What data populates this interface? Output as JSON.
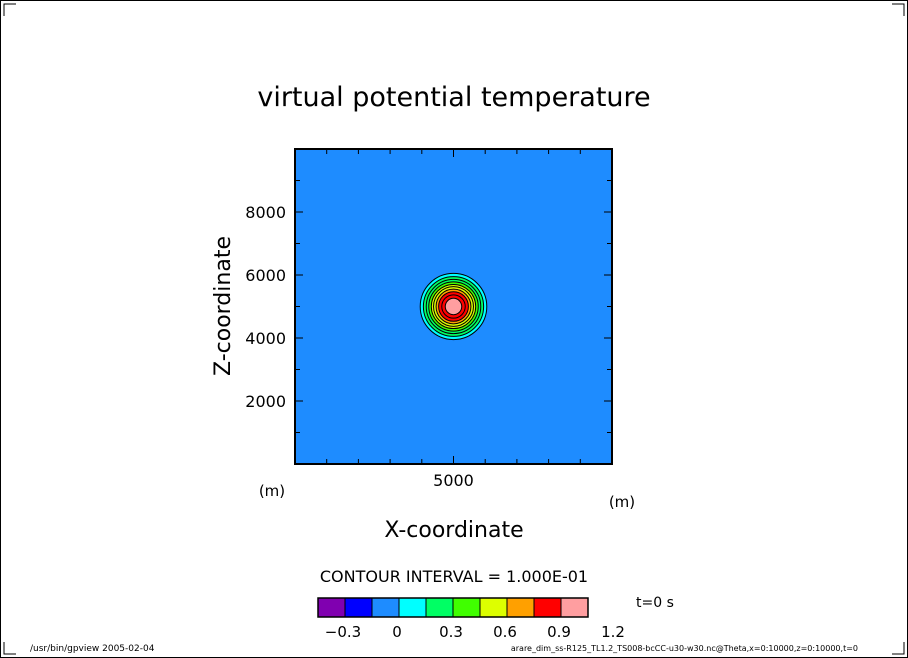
{
  "chart_data": {
    "type": "heatmap",
    "title": "virtual potential temperature",
    "xlabel": "X-coordinate",
    "ylabel": "Z-coordinate",
    "x_unit": "(m)",
    "y_unit": "(m)",
    "xlim": [
      0,
      10000
    ],
    "ylim": [
      0,
      10000
    ],
    "xticks": [
      5000
    ],
    "yticks": [
      2000,
      4000,
      6000,
      8000
    ],
    "contour_interval_label": "CONTOUR INTERVAL = 1.000E-01",
    "time_label": "t=0 s",
    "bubble": {
      "center_x": 5000,
      "center_z": 5000,
      "max_value": 1.0
    },
    "contour_levels": [
      {
        "value": 0.0,
        "radius": 1050
      },
      {
        "value": 0.1,
        "radius": 950
      },
      {
        "value": 0.2,
        "radius": 860
      },
      {
        "value": 0.3,
        "radius": 780
      },
      {
        "value": 0.4,
        "radius": 700
      },
      {
        "value": 0.5,
        "radius": 630
      },
      {
        "value": 0.6,
        "radius": 550
      },
      {
        "value": 0.7,
        "radius": 470
      },
      {
        "value": 0.8,
        "radius": 370
      },
      {
        "value": 0.9,
        "radius": 260
      }
    ],
    "colorbar": {
      "bins": [
        {
          "from": -0.45,
          "to": -0.3,
          "color": "#8000b0"
        },
        {
          "from": -0.3,
          "to": -0.15,
          "color": "#0000ff"
        },
        {
          "from": -0.15,
          "to": 0.0,
          "color": "#1e8cff"
        },
        {
          "from": 0.0,
          "to": 0.15,
          "color": "#00ffff"
        },
        {
          "from": 0.15,
          "to": 0.3,
          "color": "#00ff64"
        },
        {
          "from": 0.3,
          "to": 0.45,
          "color": "#40ff00"
        },
        {
          "from": 0.45,
          "to": 0.6,
          "color": "#ddff00"
        },
        {
          "from": 0.6,
          "to": 0.75,
          "color": "#ffa000"
        },
        {
          "from": 0.75,
          "to": 0.9,
          "color": "#ff0000"
        },
        {
          "from": 0.9,
          "to": 1.05,
          "color": "#ff9ea0"
        }
      ],
      "tick_labels": [
        "−0.3",
        "0",
        "0.3",
        "0.6",
        "0.9",
        "1.2"
      ]
    }
  },
  "footer": {
    "left": "/usr/bin/gpview  2005-02-04",
    "right": "arare_dim_ss-R125_TL1.2_TS008-bcCC-u30-w30.nc@Theta,x=0:10000,z=0:10000,t=0"
  }
}
